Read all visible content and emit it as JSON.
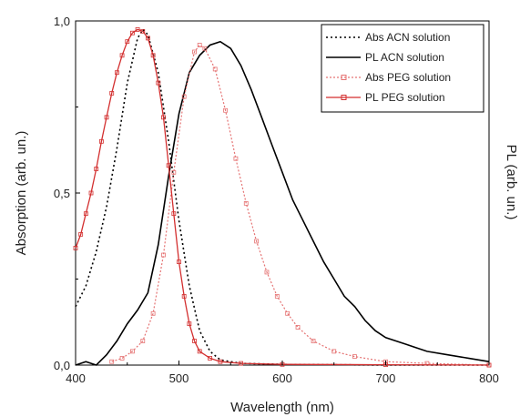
{
  "chart_data": {
    "type": "line",
    "xlabel": "Wavelength (nm)",
    "ylabel": "Absorption (arb. un.)",
    "y2label": "PL (arb. un.)",
    "xlim": [
      400,
      800
    ],
    "ylim": [
      0,
      1.0
    ],
    "x_ticks": [
      {
        "value": 400,
        "label": "400"
      },
      {
        "value": 500,
        "label": "500"
      },
      {
        "value": 600,
        "label": "600"
      },
      {
        "value": 700,
        "label": "700"
      },
      {
        "value": 800,
        "label": "800"
      }
    ],
    "y_ticks": [
      {
        "value": 0.0,
        "label": "0,0"
      },
      {
        "value": 0.5,
        "label": "0,5"
      },
      {
        "value": 1.0,
        "label": "1,0"
      }
    ],
    "grid": false,
    "legend_position": "top-right",
    "series": [
      {
        "name": "Abs ACN solution",
        "color": "#000000",
        "style": "dotted",
        "points": [
          [
            400,
            0.17
          ],
          [
            410,
            0.23
          ],
          [
            420,
            0.33
          ],
          [
            430,
            0.46
          ],
          [
            440,
            0.63
          ],
          [
            450,
            0.82
          ],
          [
            460,
            0.95
          ],
          [
            465,
            0.975
          ],
          [
            470,
            0.96
          ],
          [
            480,
            0.85
          ],
          [
            490,
            0.65
          ],
          [
            500,
            0.42
          ],
          [
            510,
            0.23
          ],
          [
            520,
            0.1
          ],
          [
            530,
            0.04
          ],
          [
            540,
            0.015
          ],
          [
            560,
            0.005
          ],
          [
            600,
            0.002
          ],
          [
            700,
            0.0
          ],
          [
            800,
            0.0
          ]
        ]
      },
      {
        "name": "PL ACN solution",
        "color": "#000000",
        "style": "solid",
        "points": [
          [
            400,
            0.0
          ],
          [
            410,
            0.01
          ],
          [
            420,
            0.0
          ],
          [
            430,
            0.03
          ],
          [
            440,
            0.07
          ],
          [
            450,
            0.12
          ],
          [
            460,
            0.16
          ],
          [
            470,
            0.21
          ],
          [
            480,
            0.35
          ],
          [
            490,
            0.55
          ],
          [
            500,
            0.73
          ],
          [
            510,
            0.85
          ],
          [
            520,
            0.9
          ],
          [
            530,
            0.93
          ],
          [
            540,
            0.94
          ],
          [
            550,
            0.92
          ],
          [
            560,
            0.87
          ],
          [
            570,
            0.8
          ],
          [
            580,
            0.72
          ],
          [
            590,
            0.64
          ],
          [
            600,
            0.56
          ],
          [
            610,
            0.48
          ],
          [
            620,
            0.42
          ],
          [
            630,
            0.36
          ],
          [
            640,
            0.3
          ],
          [
            650,
            0.25
          ],
          [
            660,
            0.2
          ],
          [
            670,
            0.17
          ],
          [
            680,
            0.13
          ],
          [
            690,
            0.1
          ],
          [
            700,
            0.08
          ],
          [
            720,
            0.06
          ],
          [
            740,
            0.04
          ],
          [
            760,
            0.03
          ],
          [
            780,
            0.02
          ],
          [
            800,
            0.01
          ]
        ]
      },
      {
        "name": "Abs PEG solution",
        "color": "#e57373",
        "style": "squares",
        "points": [
          [
            435,
            0.01
          ],
          [
            445,
            0.02
          ],
          [
            455,
            0.04
          ],
          [
            465,
            0.07
          ],
          [
            475,
            0.15
          ],
          [
            485,
            0.32
          ],
          [
            495,
            0.56
          ],
          [
            505,
            0.78
          ],
          [
            515,
            0.91
          ],
          [
            520,
            0.93
          ],
          [
            525,
            0.92
          ],
          [
            535,
            0.86
          ],
          [
            545,
            0.74
          ],
          [
            555,
            0.6
          ],
          [
            565,
            0.47
          ],
          [
            575,
            0.36
          ],
          [
            585,
            0.27
          ],
          [
            595,
            0.2
          ],
          [
            605,
            0.15
          ],
          [
            615,
            0.11
          ],
          [
            630,
            0.07
          ],
          [
            650,
            0.04
          ],
          [
            670,
            0.025
          ],
          [
            700,
            0.01
          ],
          [
            740,
            0.005
          ],
          [
            800,
            0.0
          ]
        ]
      },
      {
        "name": "PL PEG solution",
        "color": "#d32f2f",
        "style": "solid-squares",
        "points": [
          [
            400,
            0.34
          ],
          [
            405,
            0.38
          ],
          [
            410,
            0.44
          ],
          [
            415,
            0.5
          ],
          [
            420,
            0.57
          ],
          [
            425,
            0.65
          ],
          [
            430,
            0.72
          ],
          [
            435,
            0.79
          ],
          [
            440,
            0.85
          ],
          [
            445,
            0.9
          ],
          [
            450,
            0.94
          ],
          [
            455,
            0.965
          ],
          [
            460,
            0.975
          ],
          [
            465,
            0.97
          ],
          [
            470,
            0.95
          ],
          [
            475,
            0.9
          ],
          [
            480,
            0.82
          ],
          [
            485,
            0.72
          ],
          [
            490,
            0.58
          ],
          [
            495,
            0.44
          ],
          [
            500,
            0.3
          ],
          [
            505,
            0.2
          ],
          [
            510,
            0.12
          ],
          [
            515,
            0.07
          ],
          [
            520,
            0.04
          ],
          [
            530,
            0.02
          ],
          [
            540,
            0.01
          ],
          [
            560,
            0.005
          ],
          [
            600,
            0.002
          ],
          [
            700,
            0.001
          ],
          [
            800,
            0.0
          ]
        ]
      }
    ]
  }
}
